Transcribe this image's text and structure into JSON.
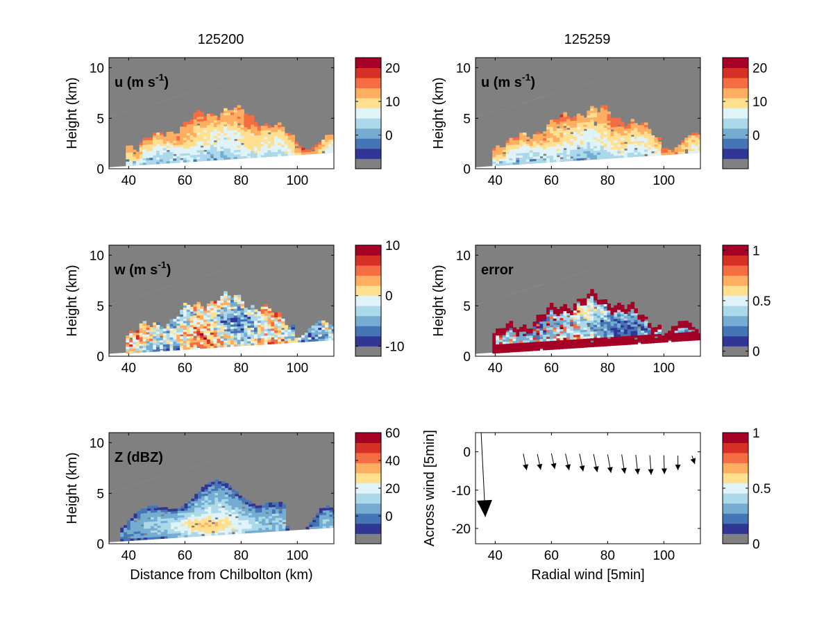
{
  "column_titles": [
    "125200",
    "125259"
  ],
  "colors": {
    "palette": [
      "#808080",
      "#313695",
      "#4575b4",
      "#74add1",
      "#abd9e9",
      "#e0f3f8",
      "#fee090",
      "#fdae61",
      "#f46d43",
      "#d73027",
      "#a50026"
    ],
    "masked_gray": "#808080",
    "axis": "#000000"
  },
  "chart_data": [
    {
      "id": "u-125200",
      "type": "heatmap",
      "column": 0,
      "row": 0,
      "label_main": "u (m s",
      "label_sup": "-1",
      "label_close": ")",
      "ylabel": "Height (km)",
      "xlabel": "",
      "xlim": [
        33,
        113
      ],
      "ylim": [
        0,
        11
      ],
      "xticks": [
        40,
        60,
        80,
        100
      ],
      "yticks": [
        0,
        5,
        10
      ],
      "colorbar": {
        "range": [
          -10,
          23
        ],
        "ticks": [
          0,
          10,
          20
        ]
      },
      "field": "u"
    },
    {
      "id": "u-125259",
      "type": "heatmap",
      "column": 1,
      "row": 0,
      "label_main": "u (m s",
      "label_sup": "-1",
      "label_close": ")",
      "ylabel": "Height (km)",
      "xlabel": "",
      "xlim": [
        33,
        113
      ],
      "ylim": [
        0,
        11
      ],
      "xticks": [
        40,
        60,
        80,
        100
      ],
      "yticks": [
        0,
        5,
        10
      ],
      "colorbar": {
        "range": [
          -10,
          23
        ],
        "ticks": [
          0,
          10,
          20
        ]
      },
      "field": "u"
    },
    {
      "id": "w-125200",
      "type": "heatmap",
      "column": 0,
      "row": 1,
      "label_main": "w (m s",
      "label_sup": "-1",
      "label_close": ")",
      "ylabel": "Height (km)",
      "xlabel": "",
      "xlim": [
        33,
        113
      ],
      "ylim": [
        0,
        11
      ],
      "xticks": [
        40,
        60,
        80,
        100
      ],
      "yticks": [
        0,
        5,
        10
      ],
      "colorbar": {
        "range": [
          -12,
          10
        ],
        "ticks": [
          -10,
          0,
          10
        ]
      },
      "field": "w"
    },
    {
      "id": "error-125259",
      "type": "heatmap",
      "column": 1,
      "row": 1,
      "label_main": "error",
      "label_sup": "",
      "label_close": "",
      "ylabel": "Height (km)",
      "xlabel": "",
      "xlim": [
        33,
        113
      ],
      "ylim": [
        0,
        11
      ],
      "xticks": [
        40,
        60,
        80,
        100
      ],
      "yticks": [
        0,
        5,
        10
      ],
      "colorbar": {
        "range": [
          -0.05,
          1.05
        ],
        "ticks": [
          0,
          0.5,
          1
        ]
      },
      "field": "error"
    },
    {
      "id": "Z-125200",
      "type": "heatmap",
      "column": 0,
      "row": 2,
      "label_main": "Z (dBZ)",
      "label_sup": "",
      "label_close": "",
      "ylabel": "Height (km)",
      "xlabel": "Distance from Chilbolton (km)",
      "xlim": [
        33,
        113
      ],
      "ylim": [
        0,
        11
      ],
      "xticks": [
        40,
        60,
        80,
        100
      ],
      "yticks": [
        0,
        5,
        10
      ],
      "colorbar": {
        "range": [
          -20,
          60
        ],
        "ticks": [
          0,
          20,
          40,
          60
        ]
      },
      "field": "Z"
    },
    {
      "id": "wind-vectors",
      "type": "scatter",
      "column": 1,
      "row": 2,
      "label_main": "",
      "label_sup": "",
      "label_close": "",
      "ylabel": "Across wind [5min]",
      "xlabel": "Radial wind [5min]",
      "xlim": [
        33,
        113
      ],
      "ylim": [
        -24,
        5
      ],
      "xticks": [
        40,
        60,
        80,
        100
      ],
      "yticks": [
        0,
        -10,
        -20
      ],
      "colorbar": {
        "range": [
          0,
          1
        ],
        "ticks": [
          0,
          0.5,
          1
        ]
      },
      "arrows": [
        {
          "x": 35,
          "y": 5,
          "u": 1.5,
          "v": -22,
          "big": true
        },
        {
          "x": 50,
          "y": -0.5,
          "u": 1.2,
          "v": -4.3
        },
        {
          "x": 55,
          "y": -0.6,
          "u": 1.2,
          "v": -4.1
        },
        {
          "x": 60,
          "y": -0.4,
          "u": 1.2,
          "v": -4.1
        },
        {
          "x": 65,
          "y": -0.5,
          "u": 1.3,
          "v": -4.3
        },
        {
          "x": 70,
          "y": -0.5,
          "u": 1.3,
          "v": -4.6
        },
        {
          "x": 75,
          "y": -0.6,
          "u": 1.3,
          "v": -4.7
        },
        {
          "x": 80,
          "y": -0.7,
          "u": 1.2,
          "v": -4.8
        },
        {
          "x": 85,
          "y": -0.7,
          "u": 1.1,
          "v": -5.0
        },
        {
          "x": 90,
          "y": -0.8,
          "u": 0.8,
          "v": -5.1
        },
        {
          "x": 95,
          "y": -0.9,
          "u": 0.5,
          "v": -5.1
        },
        {
          "x": 100,
          "y": -0.9,
          "u": 0.2,
          "v": -4.9
        },
        {
          "x": 105,
          "y": -1.0,
          "u": 0.0,
          "v": -3.8
        },
        {
          "x": 110,
          "y": -1.0,
          "u": 1.0,
          "v": -2.2
        }
      ]
    }
  ]
}
